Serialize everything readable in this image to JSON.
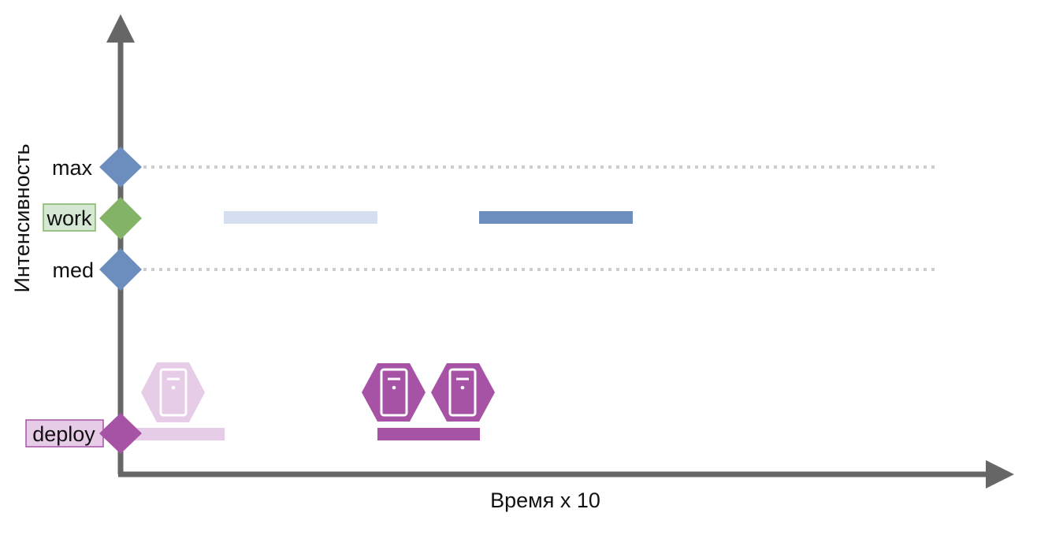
{
  "diagram": {
    "y_axis_label": "Интенсивность",
    "x_axis_label": "Время х 10",
    "levels": {
      "max": "max",
      "work": "work",
      "med": "med",
      "deploy": "deploy"
    },
    "colors": {
      "axis": "#666666",
      "level_marker": "#6c8ebf",
      "work_marker": "#82b366",
      "work_label_bg": "#d5e8d4",
      "deploy_marker": "#a653a6",
      "deploy_faded": "#e6cce6",
      "work_bar_faded": "#d5dff0",
      "dotted_line": "#cccccc"
    }
  }
}
